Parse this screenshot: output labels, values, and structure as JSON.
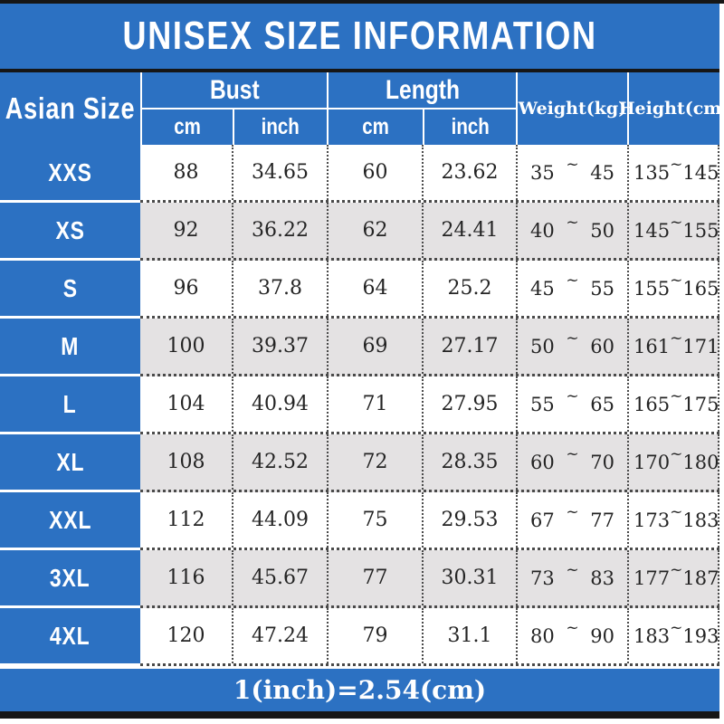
{
  "title": "UNISEX SIZE INFORMATION",
  "footer_note": "1(inch)=2.54(cm)",
  "colors": {
    "blue": "#2c71c2",
    "alt_row": "#e4e2e3",
    "bar": "#161616",
    "text": "#242424",
    "header_text": "#ffffff"
  },
  "table": {
    "size_header": "Asian Size",
    "bust_label": "Bust",
    "length_label": "Length",
    "cm_label": "cm",
    "inch_label": "inch",
    "weight_header": "Weight(kg)",
    "height_header": "Height(cm)",
    "tilde": "~",
    "rows": [
      {
        "size": "XXS",
        "bust_cm": "88",
        "bust_in": "34.65",
        "len_cm": "60",
        "len_in": "23.62",
        "w_min": "35",
        "w_max": "45",
        "h_min": "135",
        "h_max": "145"
      },
      {
        "size": "XS",
        "bust_cm": "92",
        "bust_in": "36.22",
        "len_cm": "62",
        "len_in": "24.41",
        "w_min": "40",
        "w_max": "50",
        "h_min": "145",
        "h_max": "155"
      },
      {
        "size": "S",
        "bust_cm": "96",
        "bust_in": "37.8",
        "len_cm": "64",
        "len_in": "25.2",
        "w_min": "45",
        "w_max": "55",
        "h_min": "155",
        "h_max": "165"
      },
      {
        "size": "M",
        "bust_cm": "100",
        "bust_in": "39.37",
        "len_cm": "69",
        "len_in": "27.17",
        "w_min": "50",
        "w_max": "60",
        "h_min": "161",
        "h_max": "171"
      },
      {
        "size": "L",
        "bust_cm": "104",
        "bust_in": "40.94",
        "len_cm": "71",
        "len_in": "27.95",
        "w_min": "55",
        "w_max": "65",
        "h_min": "165",
        "h_max": "175"
      },
      {
        "size": "XL",
        "bust_cm": "108",
        "bust_in": "42.52",
        "len_cm": "72",
        "len_in": "28.35",
        "w_min": "60",
        "w_max": "70",
        "h_min": "170",
        "h_max": "180"
      },
      {
        "size": "XXL",
        "bust_cm": "112",
        "bust_in": "44.09",
        "len_cm": "75",
        "len_in": "29.53",
        "w_min": "67",
        "w_max": "77",
        "h_min": "173",
        "h_max": "183"
      },
      {
        "size": "3XL",
        "bust_cm": "116",
        "bust_in": "45.67",
        "len_cm": "77",
        "len_in": "30.31",
        "w_min": "73",
        "w_max": "83",
        "h_min": "177",
        "h_max": "187"
      },
      {
        "size": "4XL",
        "bust_cm": "120",
        "bust_in": "47.24",
        "len_cm": "79",
        "len_in": "31.1",
        "w_min": "80",
        "w_max": "90",
        "h_min": "183",
        "h_max": "193"
      }
    ]
  },
  "chart_data": {
    "type": "table",
    "title": "UNISEX SIZE INFORMATION",
    "note": "1(inch)=2.54(cm)",
    "columns": [
      "Asian Size",
      "Bust cm",
      "Bust inch",
      "Length cm",
      "Length inch",
      "Weight(kg) min",
      "Weight(kg) max",
      "Height(cm) min",
      "Height(cm) max"
    ],
    "rows": [
      [
        "XXS",
        88,
        34.65,
        60,
        23.62,
        35,
        45,
        135,
        145
      ],
      [
        "XS",
        92,
        36.22,
        62,
        24.41,
        40,
        50,
        145,
        155
      ],
      [
        "S",
        96,
        37.8,
        64,
        25.2,
        45,
        55,
        155,
        165
      ],
      [
        "M",
        100,
        39.37,
        69,
        27.17,
        50,
        60,
        161,
        171
      ],
      [
        "L",
        104,
        40.94,
        71,
        27.95,
        55,
        65,
        165,
        175
      ],
      [
        "XL",
        108,
        42.52,
        72,
        28.35,
        60,
        70,
        170,
        180
      ],
      [
        "XXL",
        112,
        44.09,
        75,
        29.53,
        67,
        77,
        173,
        183
      ],
      [
        "3XL",
        116,
        45.67,
        77,
        30.31,
        73,
        83,
        177,
        187
      ],
      [
        "4XL",
        120,
        47.24,
        79,
        31.1,
        80,
        90,
        183,
        193
      ]
    ]
  }
}
